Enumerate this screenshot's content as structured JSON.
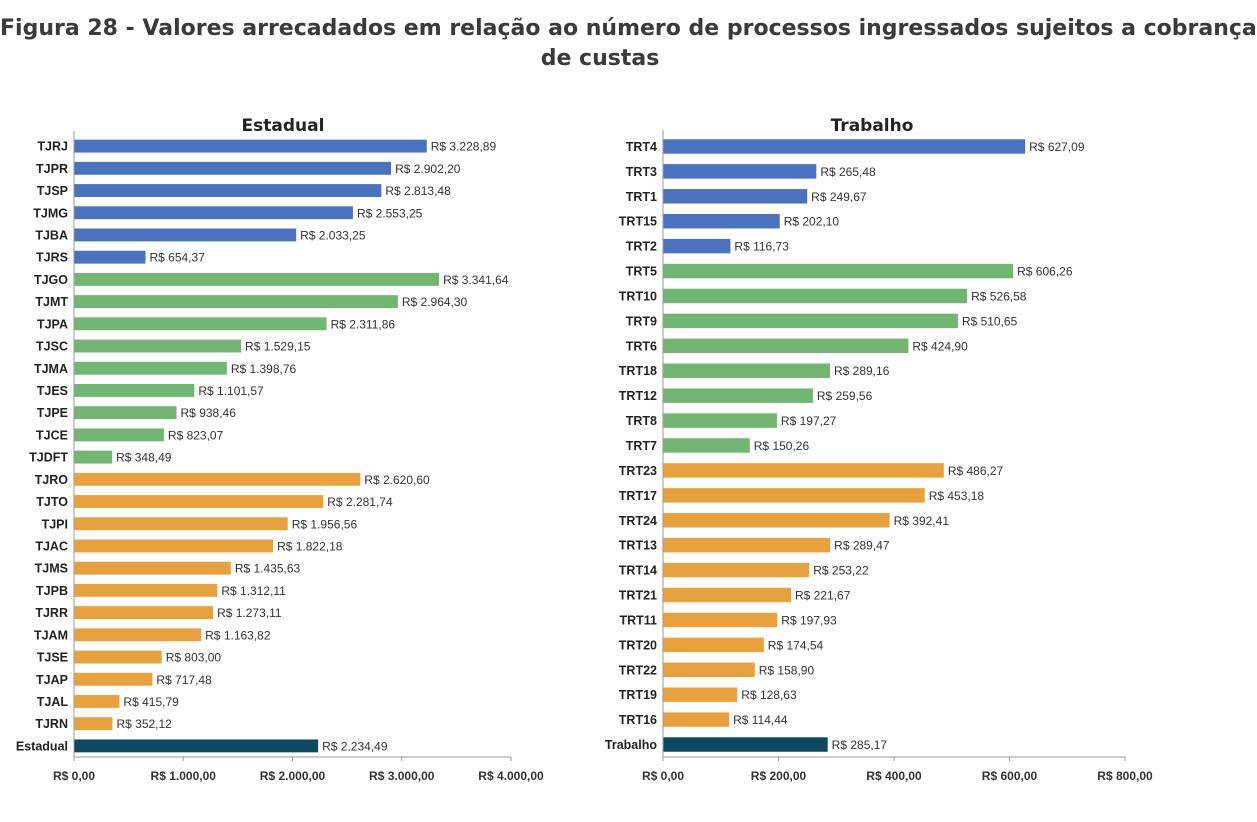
{
  "figure": {
    "title_line1": "Figura 28 - Valores arrecadados em relação ao número de processos ingressados sujeitos a cobrança",
    "title_line2": "de custas"
  },
  "colors": {
    "blue": "#4a72bf",
    "green": "#73b572",
    "orange": "#e8a13f",
    "total": "#0d4a62"
  },
  "chart_data": [
    {
      "type": "bar",
      "orientation": "horizontal",
      "title": "Estadual",
      "xlim": [
        0,
        4000
      ],
      "ticks": [
        0,
        1000,
        2000,
        3000,
        4000
      ],
      "tick_labels": [
        "R$ 0,00",
        "R$ 1.000,00",
        "R$ 2.000,00",
        "R$ 3.000,00",
        "R$ 4.000,00"
      ],
      "grid": false,
      "categories": [
        "TJRJ",
        "TJPR",
        "TJSP",
        "TJMG",
        "TJBA",
        "TJRS",
        "TJGO",
        "TJMT",
        "TJPA",
        "TJSC",
        "TJMA",
        "TJES",
        "TJPE",
        "TJCE",
        "TJDFT",
        "TJRO",
        "TJTO",
        "TJPI",
        "TJAC",
        "TJMS",
        "TJPB",
        "TJRR",
        "TJAM",
        "TJSE",
        "TJAP",
        "TJAL",
        "TJRN",
        "Estadual"
      ],
      "values": [
        3228.89,
        2902.2,
        2813.48,
        2553.25,
        2033.25,
        654.37,
        3341.64,
        2964.3,
        2311.86,
        1529.15,
        1398.76,
        1101.57,
        938.46,
        823.07,
        348.49,
        2620.6,
        2281.74,
        1956.56,
        1822.18,
        1435.63,
        1312.11,
        1273.11,
        1163.82,
        803.0,
        717.48,
        415.79,
        352.12,
        2234.49
      ],
      "value_labels": [
        "R$ 3.228,89",
        "R$ 2.902,20",
        "R$ 2.813,48",
        "R$ 2.553,25",
        "R$ 2.033,25",
        "R$ 654,37",
        "R$ 3.341,64",
        "R$ 2.964,30",
        "R$ 2.311,86",
        "R$ 1.529,15",
        "R$ 1.398,76",
        "R$ 1.101,57",
        "R$ 938,46",
        "R$ 823,07",
        "R$ 348,49",
        "R$ 2.620,60",
        "R$ 2.281,74",
        "R$ 1.956,56",
        "R$ 1.822,18",
        "R$ 1.435,63",
        "R$ 1.312,11",
        "R$ 1.273,11",
        "R$ 1.163,82",
        "R$ 803,00",
        "R$ 717,48",
        "R$ 415,79",
        "R$ 352,12",
        "R$ 2.234,49"
      ],
      "groups": [
        "blue",
        "blue",
        "blue",
        "blue",
        "blue",
        "blue",
        "green",
        "green",
        "green",
        "green",
        "green",
        "green",
        "green",
        "green",
        "green",
        "orange",
        "orange",
        "orange",
        "orange",
        "orange",
        "orange",
        "orange",
        "orange",
        "orange",
        "orange",
        "orange",
        "orange",
        "total"
      ]
    },
    {
      "type": "bar",
      "orientation": "horizontal",
      "title": "Trabalho",
      "xlim": [
        0,
        800
      ],
      "ticks": [
        0,
        200,
        400,
        600,
        800
      ],
      "tick_labels": [
        "R$ 0,00",
        "R$ 200,00",
        "R$ 400,00",
        "R$ 600,00",
        "R$ 800,00"
      ],
      "grid": false,
      "categories": [
        "TRT4",
        "TRT3",
        "TRT1",
        "TRT15",
        "TRT2",
        "TRT5",
        "TRT10",
        "TRT9",
        "TRT6",
        "TRT18",
        "TRT12",
        "TRT8",
        "TRT7",
        "TRT23",
        "TRT17",
        "TRT24",
        "TRT13",
        "TRT14",
        "TRT21",
        "TRT11",
        "TRT20",
        "TRT22",
        "TRT19",
        "TRT16",
        "Trabalho"
      ],
      "values": [
        627.09,
        265.48,
        249.67,
        202.1,
        116.73,
        606.26,
        526.58,
        510.65,
        424.9,
        289.16,
        259.56,
        197.27,
        150.26,
        486.27,
        453.18,
        392.41,
        289.47,
        253.22,
        221.67,
        197.93,
        174.54,
        158.9,
        128.63,
        114.44,
        285.17
      ],
      "value_labels": [
        "R$ 627,09",
        "R$ 265,48",
        "R$ 249,67",
        "R$ 202,10",
        "R$ 116,73",
        "R$ 606,26",
        "R$ 526,58",
        "R$ 510,65",
        "R$ 424,90",
        "R$ 289,16",
        "R$ 259,56",
        "R$ 197,27",
        "R$ 150,26",
        "R$ 486,27",
        "R$ 453,18",
        "R$ 392,41",
        "R$ 289,47",
        "R$ 253,22",
        "R$ 221,67",
        "R$ 197,93",
        "R$ 174,54",
        "R$ 158,90",
        "R$ 128,63",
        "R$ 114,44",
        "R$ 285,17"
      ],
      "groups": [
        "blue",
        "blue",
        "blue",
        "blue",
        "blue",
        "green",
        "green",
        "green",
        "green",
        "green",
        "green",
        "green",
        "green",
        "orange",
        "orange",
        "orange",
        "orange",
        "orange",
        "orange",
        "orange",
        "orange",
        "orange",
        "orange",
        "orange",
        "total"
      ]
    }
  ]
}
